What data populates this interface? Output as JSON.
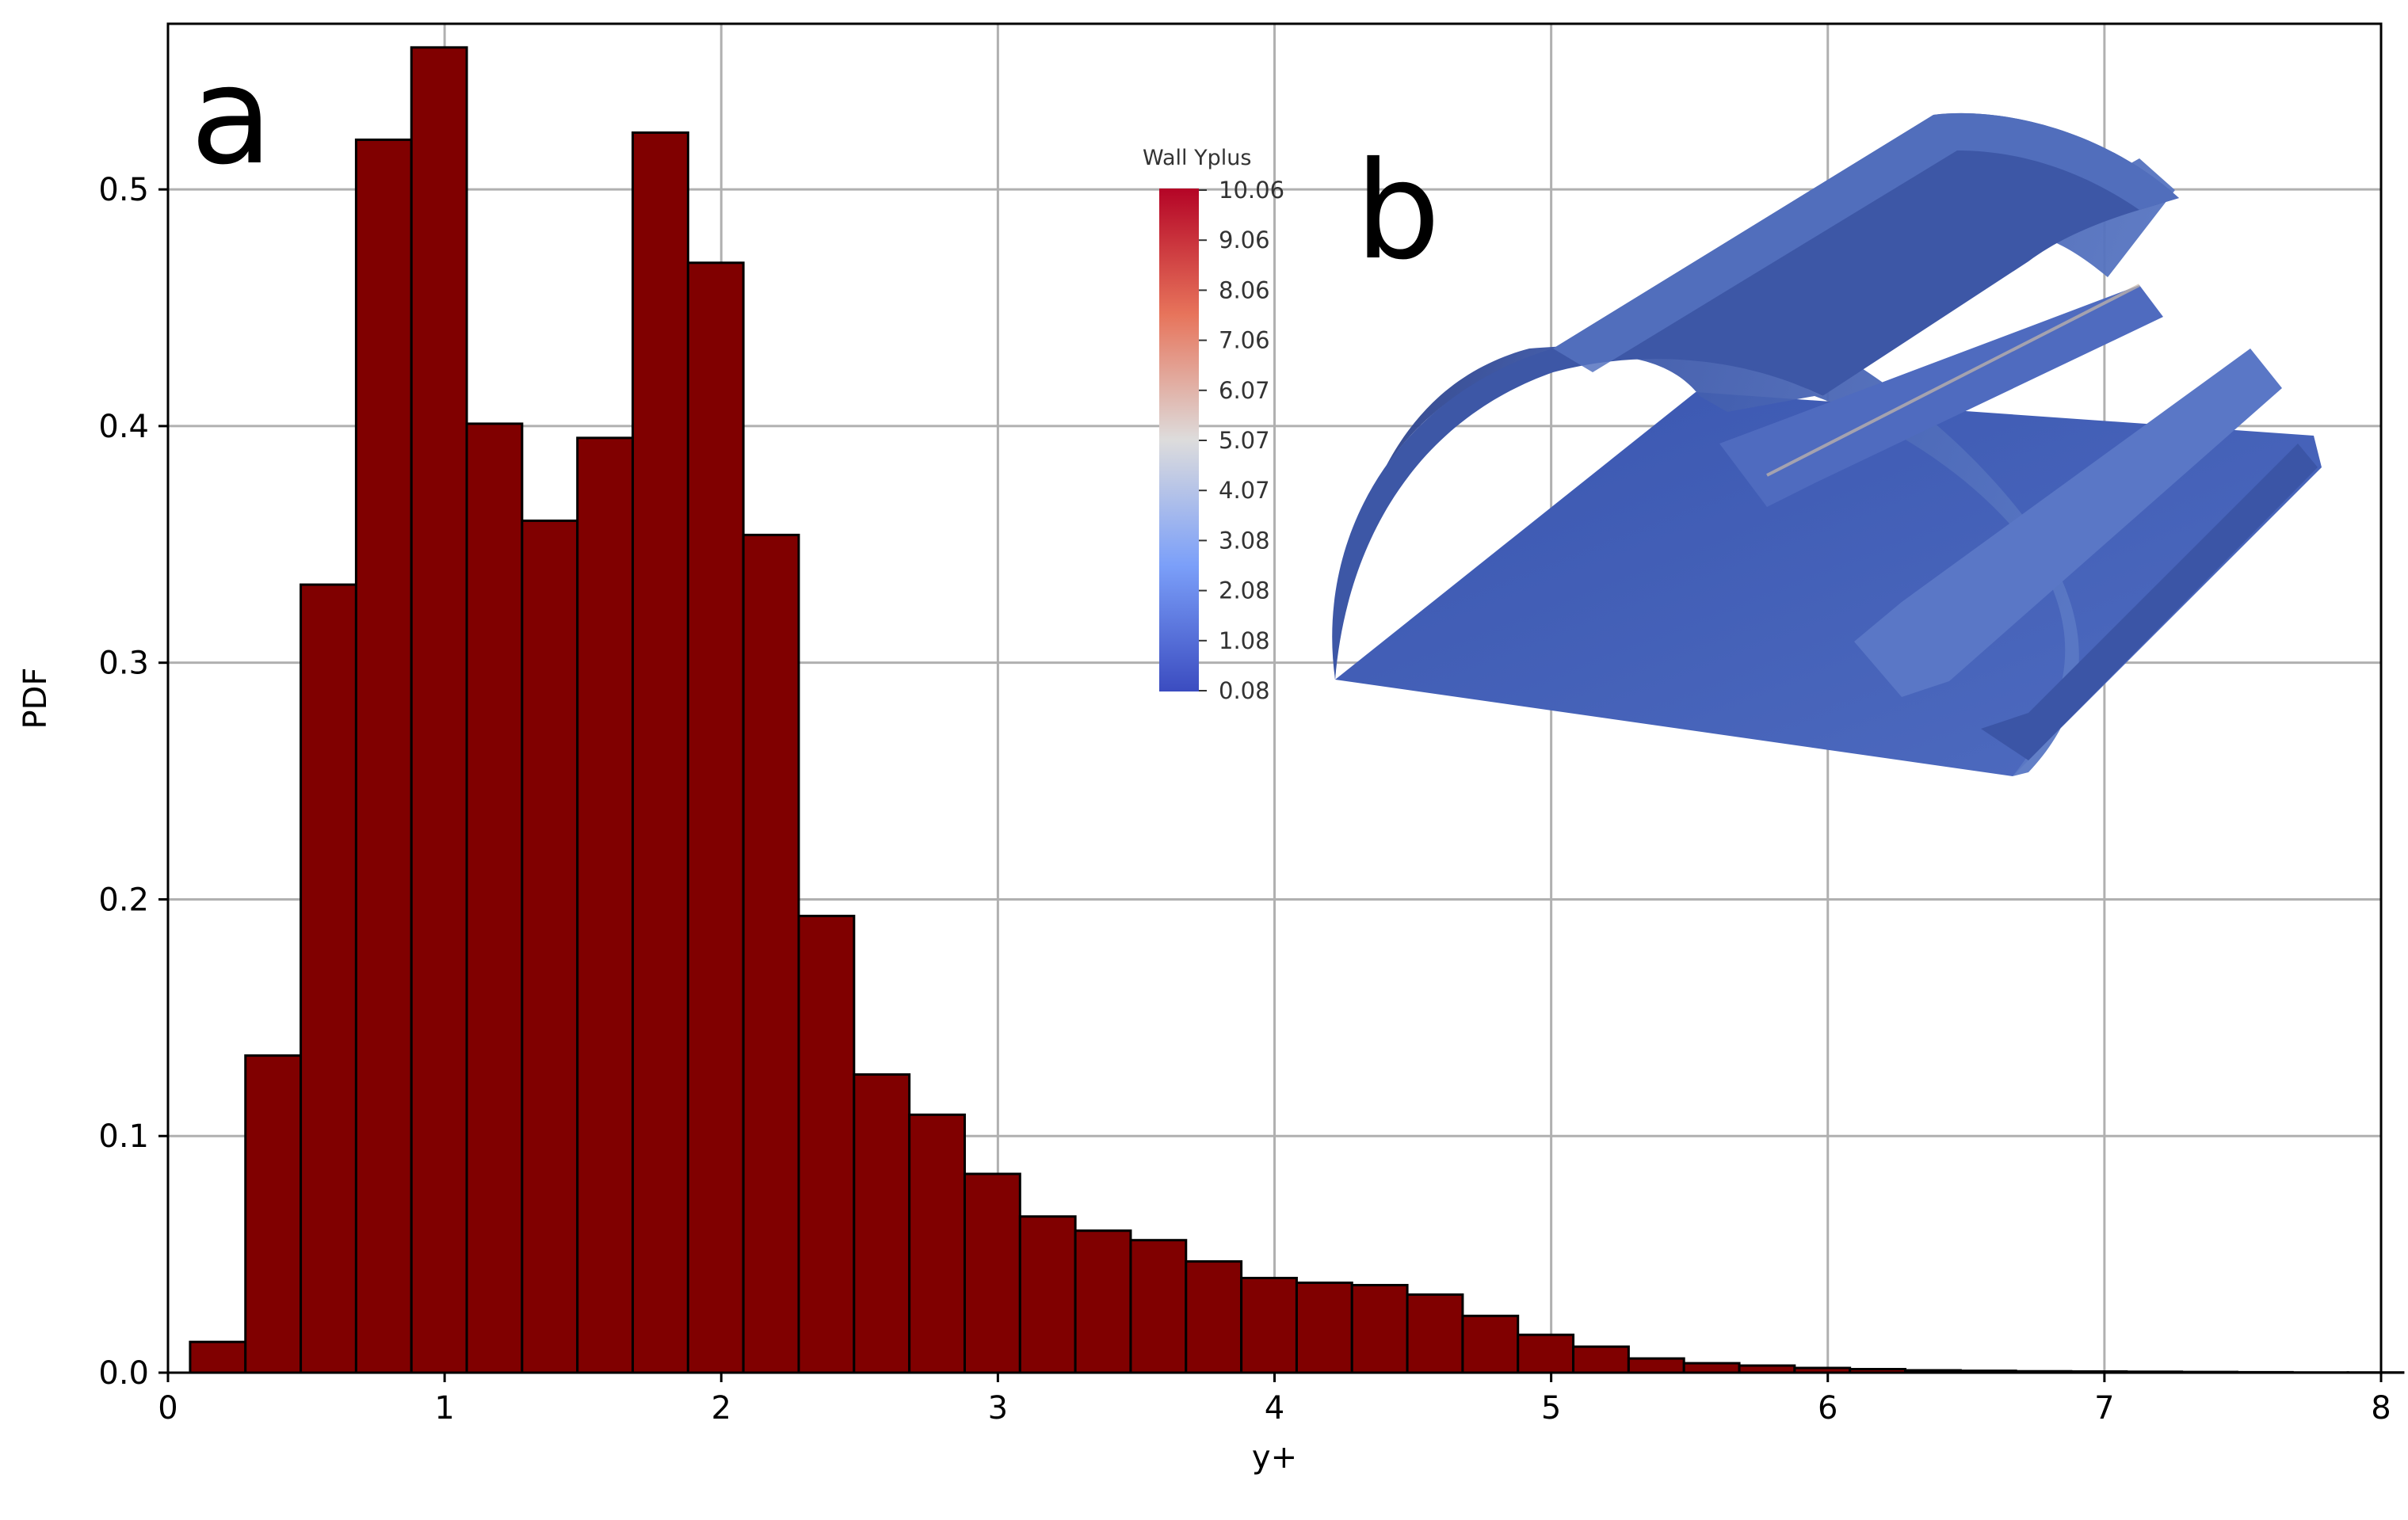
{
  "panels": {
    "a": "a",
    "b": "b"
  },
  "chart_data": {
    "type": "bar",
    "xlabel": "y+",
    "ylabel": "PDF",
    "xlim": [
      0,
      8
    ],
    "ylim": [
      0,
      0.57
    ],
    "xticks": [
      "0",
      "1",
      "2",
      "3",
      "4",
      "5",
      "6",
      "7",
      "8"
    ],
    "yticks": [
      "0.0",
      "0.1",
      "0.2",
      "0.3",
      "0.4",
      "0.5"
    ],
    "grid": true,
    "bar_color": "#800000",
    "bin_width": 0.2,
    "bins_start": [
      0.08,
      0.28,
      0.48,
      0.68,
      0.88,
      1.08,
      1.28,
      1.48,
      1.68,
      1.88,
      2.08,
      2.28,
      2.48,
      2.68,
      2.88,
      3.08,
      3.28,
      3.48,
      3.68,
      3.88,
      4.08,
      4.28,
      4.48,
      4.68,
      4.88,
      5.08,
      5.28,
      5.48,
      5.68,
      5.88,
      6.08,
      6.28,
      6.48,
      6.68,
      6.88,
      7.08,
      7.28,
      7.48,
      7.68,
      7.88
    ],
    "values": [
      0.013,
      0.134,
      0.333,
      0.521,
      0.56,
      0.401,
      0.36,
      0.395,
      0.524,
      0.469,
      0.354,
      0.193,
      0.126,
      0.109,
      0.084,
      0.066,
      0.06,
      0.056,
      0.047,
      0.04,
      0.038,
      0.037,
      0.033,
      0.024,
      0.016,
      0.011,
      0.006,
      0.004,
      0.003,
      0.002,
      0.0015,
      0.001,
      0.0008,
      0.0006,
      0.0005,
      0.0004,
      0.0003,
      0.0002,
      0.0001,
      0.0001
    ]
  },
  "inset": {
    "colorbar_title": "Wall Yplus",
    "colorbar_ticks": [
      "10.06",
      "9.06",
      "8.06",
      "7.06",
      "6.07",
      "5.07",
      "4.07",
      "3.08",
      "2.08",
      "1.08",
      "0.08"
    ],
    "colorbar_colors": [
      "#b40426",
      "#e7745b",
      "#dddcdc",
      "#7b9ff9",
      "#3b4cc0"
    ],
    "surface_color": "#4a66b8"
  }
}
